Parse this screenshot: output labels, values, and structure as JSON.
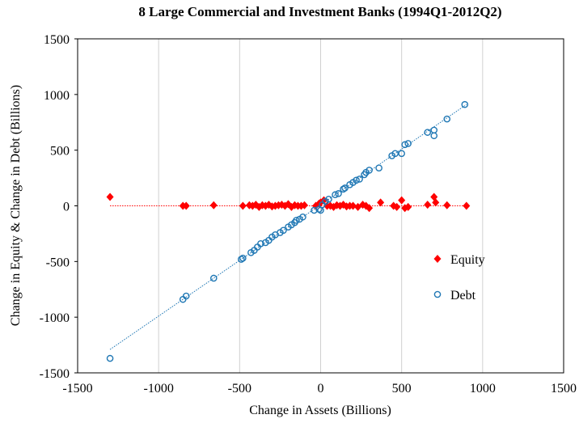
{
  "chart_data": {
    "type": "scatter",
    "title": "8 Large Commercial and Investment Banks (1994Q1-2012Q2)",
    "x_label": "Change in Assets (Billions)",
    "y_label": "Change in Equity & Change in Debt (Billions)",
    "xlim": [
      -1500,
      1500
    ],
    "ylim": [
      -1500,
      1500
    ],
    "xticks": [
      -1500,
      -1000,
      -500,
      0,
      500,
      1000,
      1500
    ],
    "yticks": [
      -1500,
      -1000,
      -500,
      0,
      500,
      1000,
      1500
    ],
    "grid": "x",
    "legend": "right",
    "series": [
      {
        "name": "Equity",
        "color": "#ff0000",
        "marker": "diamond",
        "x": [
          -1300,
          -850,
          -830,
          -660,
          -480,
          -440,
          -420,
          -400,
          -380,
          -360,
          -340,
          -320,
          -300,
          -280,
          -260,
          -240,
          -220,
          -200,
          -180,
          -160,
          -140,
          -120,
          -100,
          -30,
          -10,
          0,
          20,
          40,
          60,
          80,
          100,
          120,
          140,
          160,
          180,
          200,
          230,
          260,
          280,
          300,
          370,
          450,
          470,
          500,
          520,
          540,
          660,
          700,
          710,
          780,
          900
        ],
        "values": [
          80,
          0,
          0,
          5,
          0,
          5,
          0,
          10,
          -10,
          5,
          0,
          10,
          -5,
          0,
          5,
          10,
          0,
          15,
          -10,
          5,
          0,
          0,
          5,
          0,
          20,
          30,
          50,
          0,
          0,
          -10,
          5,
          0,
          10,
          -5,
          0,
          0,
          -10,
          10,
          0,
          -20,
          30,
          0,
          -10,
          50,
          -20,
          -10,
          10,
          80,
          30,
          5,
          0
        ],
        "trendline": {
          "x": [
            -1300,
            900
          ],
          "y": [
            0,
            0
          ]
        }
      },
      {
        "name": "Debt",
        "color": "#1f77b4",
        "marker": "circle",
        "x": [
          -1300,
          -850,
          -830,
          -660,
          -490,
          -480,
          -430,
          -410,
          -390,
          -370,
          -340,
          -320,
          -300,
          -280,
          -250,
          -230,
          -200,
          -180,
          -160,
          -150,
          -130,
          -110,
          -40,
          -10,
          0,
          10,
          30,
          50,
          90,
          110,
          140,
          150,
          180,
          200,
          220,
          240,
          270,
          280,
          300,
          360,
          440,
          460,
          500,
          520,
          540,
          660,
          700,
          700,
          780,
          890
        ],
        "values": [
          -1370,
          -840,
          -810,
          -650,
          -480,
          -470,
          -420,
          -400,
          -370,
          -340,
          -330,
          -310,
          -280,
          -260,
          -240,
          -220,
          -190,
          -170,
          -150,
          -130,
          -120,
          -100,
          -40,
          -30,
          -40,
          10,
          40,
          60,
          100,
          110,
          150,
          160,
          190,
          210,
          230,
          240,
          280,
          300,
          320,
          340,
          450,
          470,
          470,
          550,
          560,
          660,
          630,
          680,
          780,
          910
        ],
        "trendline": {
          "x": [
            -1300,
            900
          ],
          "y": [
            -1290,
            910
          ]
        }
      }
    ]
  }
}
